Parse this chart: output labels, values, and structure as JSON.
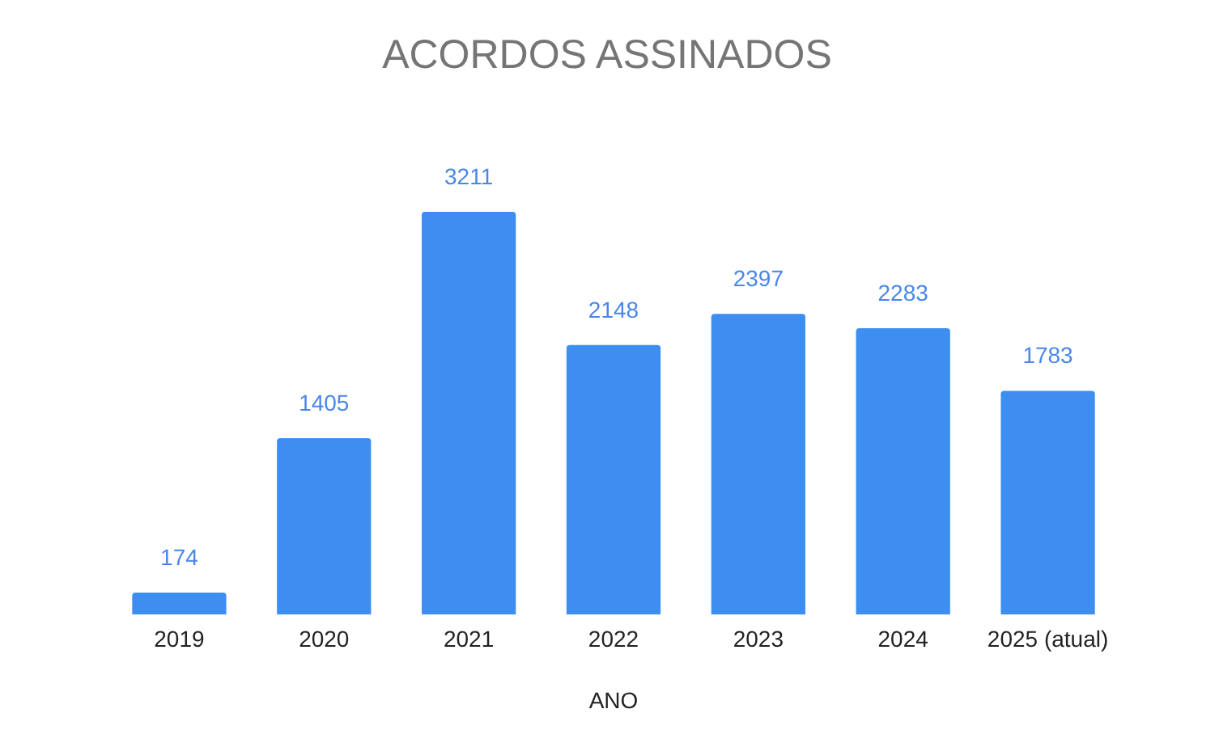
{
  "chart_data": {
    "type": "bar",
    "title": "ACORDOS ASSINADOS",
    "xlabel": "ANO",
    "categories": [
      "2019",
      "2020",
      "2021",
      "2022",
      "2023",
      "2024",
      "2025 (atual)"
    ],
    "values": [
      174,
      1405,
      3211,
      2148,
      2397,
      2283,
      1783
    ],
    "color": "#3d8ef0",
    "data_labels": true
  }
}
